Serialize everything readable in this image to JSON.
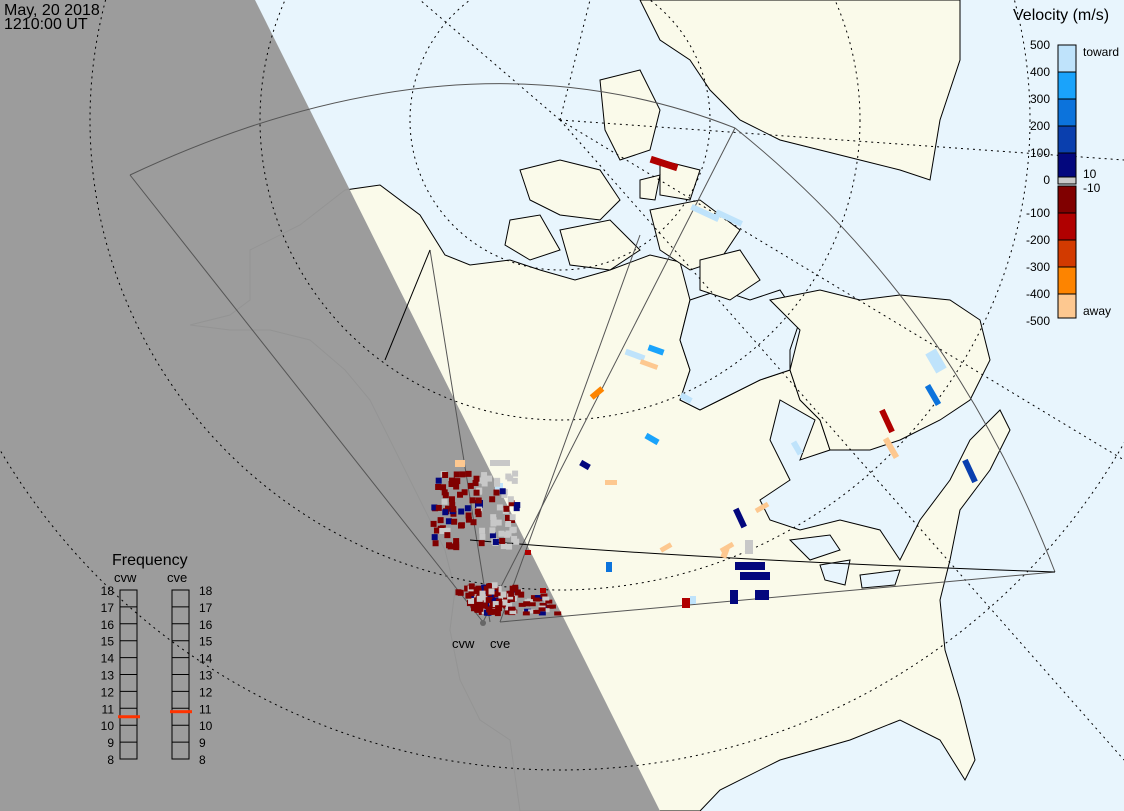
{
  "header": {
    "date": "May, 20 2018",
    "time": "1210:00 UT"
  },
  "colors": {
    "ocean": "#e8f5fd",
    "land": "#fafaea",
    "night": "#999999",
    "freq_marker": "#ff3300"
  },
  "velocity_legend": {
    "title": "Velocity (m/s)",
    "ticks": [
      "500",
      "400",
      "300",
      "200",
      "100",
      "0",
      "-100",
      "-200",
      "-300",
      "-400",
      "-500"
    ],
    "toward_label": "toward",
    "away_label": "away",
    "ground_scatter_upper": "10",
    "ground_scatter_lower": "-10",
    "colors": [
      "#bfe3fb",
      "#1aa3fb",
      "#0c73dc",
      "#0a3fae",
      "#03077d",
      "#800000",
      "#b00000",
      "#d23a00",
      "#fd8400",
      "#fdc890"
    ],
    "ground_scatter_color": "#c8c8c8"
  },
  "frequency": {
    "title": "Frequency",
    "radars": [
      {
        "name": "cvw",
        "value_mhz": 10.5
      },
      {
        "name": "cve",
        "value_mhz": 10.8
      }
    ],
    "ticks": [
      "18",
      "17",
      "16",
      "15",
      "14",
      "13",
      "12",
      "11",
      "10",
      "9",
      "8"
    ],
    "range_mhz": [
      8,
      18
    ]
  },
  "radars": [
    {
      "label": "cvw"
    },
    {
      "label": "cve"
    }
  ]
}
